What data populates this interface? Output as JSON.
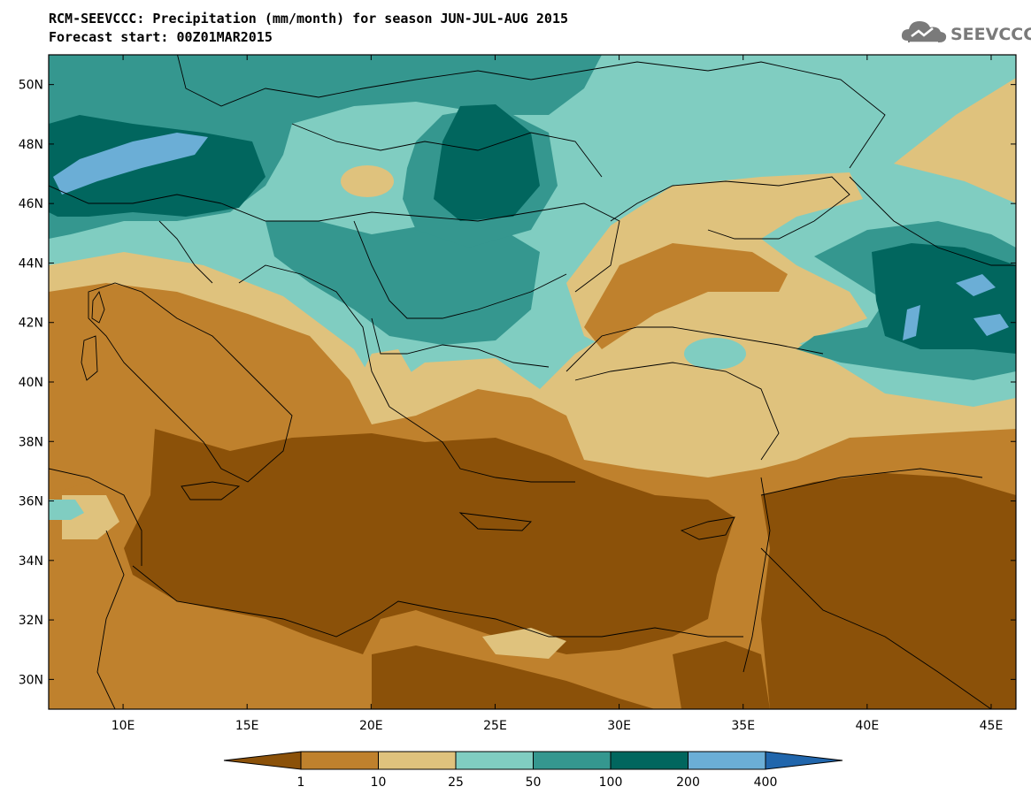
{
  "title": "RCM-SEEVCCC: Precipitation (mm/month) for season JUN-JUL-AUG 2015",
  "subtitle": "Forecast start: 00Z01MAR2015",
  "logo_text": "SEEVCCC",
  "map": {
    "lat_labels": [
      "50N",
      "48N",
      "46N",
      "44N",
      "42N",
      "40N",
      "38N",
      "36N",
      "34N",
      "32N",
      "30N"
    ],
    "lon_labels": [
      "10E",
      "15E",
      "20E",
      "25E",
      "30E",
      "35E",
      "40E",
      "45E"
    ],
    "lon_range": [
      7,
      46
    ],
    "lat_range": [
      29,
      51
    ]
  },
  "colorbar": {
    "labels": [
      "1",
      "10",
      "25",
      "50",
      "100",
      "200",
      "400"
    ],
    "colors": [
      "#8b5109",
      "#bf812d",
      "#dfc27d",
      "#80cdc1",
      "#35978f",
      "#01665e",
      "#6baed6",
      "#2166ac"
    ]
  }
}
